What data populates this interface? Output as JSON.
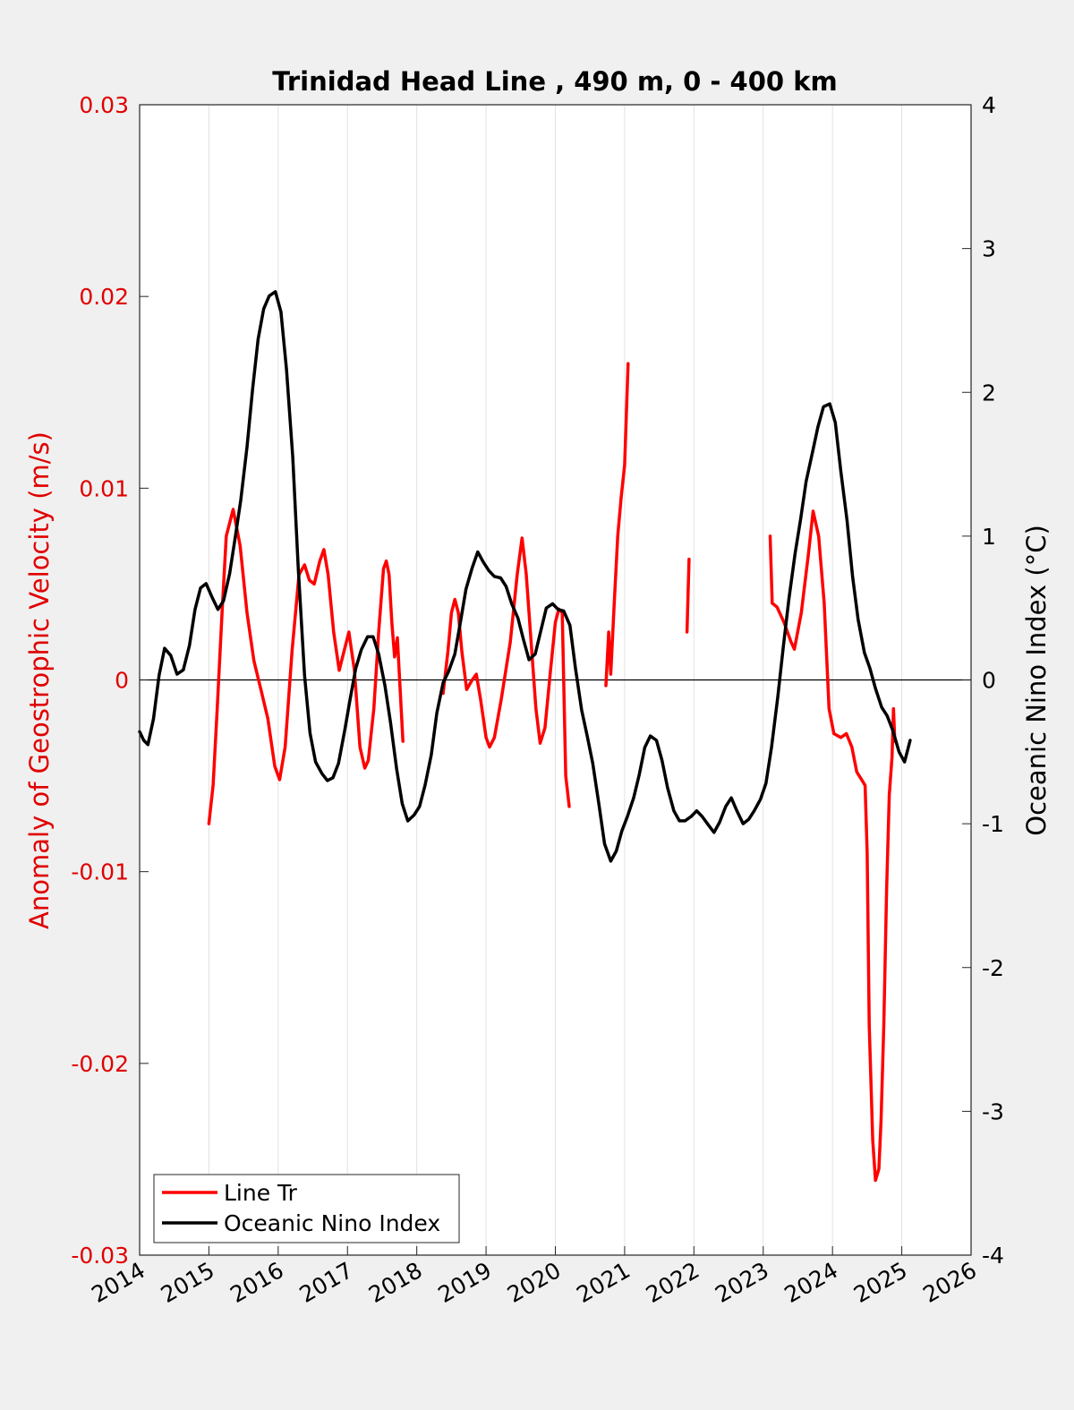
{
  "colors": {
    "line_tr": "#ff0000",
    "oni": "#000000",
    "left_axis": "#e00000",
    "background": "#f0f0f0",
    "plot_bg": "#ffffff",
    "grid": "#e2e2e2"
  },
  "chart_data": {
    "type": "line",
    "title": "Trinidad Head Line , 490 m, 0 - 400 km",
    "ylabel_left": "Anomaly of Geostrophic Velocity (m/s)",
    "ylabel_right": "Oceanic Nino Index (°C)",
    "xlim": [
      2014,
      2026
    ],
    "ylim_left": [
      -0.03,
      0.03
    ],
    "ylim_right": [
      -4,
      4
    ],
    "grid": "vertical lines at each year",
    "legend_position": "bottom-left",
    "x_ticks": [
      "2014",
      "2015",
      "2016",
      "2017",
      "2018",
      "2019",
      "2020",
      "2021",
      "2022",
      "2023",
      "2024",
      "2025",
      "2026"
    ],
    "y_ticks_left": [
      "-0.03",
      "-0.02",
      "-0.01",
      "0",
      "0.01",
      "0.02",
      "0.03"
    ],
    "y_ticks_right": [
      "-4",
      "-3",
      "-2",
      "-1",
      "0",
      "1",
      "2",
      "3",
      "4"
    ],
    "series": [
      {
        "name": "Line Tr",
        "axis": "left",
        "segments": [
          [
            [
              2015.0,
              -0.0075
            ],
            [
              2015.06,
              -0.0055
            ],
            [
              2015.12,
              -0.0015
            ],
            [
              2015.19,
              0.0035
            ],
            [
              2015.25,
              0.0075
            ],
            [
              2015.35,
              0.0089
            ],
            [
              2015.45,
              0.007
            ],
            [
              2015.55,
              0.0035
            ],
            [
              2015.65,
              0.001
            ],
            [
              2015.75,
              -0.0005
            ],
            [
              2015.85,
              -0.002
            ],
            [
              2015.95,
              -0.0045
            ],
            [
              2016.02,
              -0.0052
            ],
            [
              2016.1,
              -0.0035
            ],
            [
              2016.2,
              0.0015
            ],
            [
              2016.3,
              0.0055
            ],
            [
              2016.38,
              0.006
            ],
            [
              2016.45,
              0.0052
            ],
            [
              2016.52,
              0.005
            ],
            [
              2016.6,
              0.0062
            ],
            [
              2016.66,
              0.0068
            ],
            [
              2016.72,
              0.0055
            ],
            [
              2016.8,
              0.0025
            ],
            [
              2016.88,
              0.0005
            ],
            [
              2016.95,
              0.0015
            ],
            [
              2017.02,
              0.0025
            ],
            [
              2017.1,
              0.0005
            ],
            [
              2017.18,
              -0.0035
            ],
            [
              2017.25,
              -0.0046
            ],
            [
              2017.3,
              -0.0042
            ],
            [
              2017.38,
              -0.0015
            ],
            [
              2017.45,
              0.0025
            ],
            [
              2017.52,
              0.0058
            ],
            [
              2017.56,
              0.0062
            ],
            [
              2017.6,
              0.0055
            ],
            [
              2017.64,
              0.003
            ],
            [
              2017.68,
              0.0012
            ],
            [
              2017.72,
              0.0022
            ],
            [
              2017.76,
              -0.0005
            ],
            [
              2017.8,
              -0.0032
            ]
          ],
          [
            [
              2018.38,
              -0.0007
            ],
            [
              2018.45,
              0.0015
            ],
            [
              2018.5,
              0.0035
            ],
            [
              2018.55,
              0.0042
            ],
            [
              2018.6,
              0.0035
            ],
            [
              2018.65,
              0.0015
            ],
            [
              2018.72,
              -0.0005
            ],
            [
              2018.8,
              0.0
            ],
            [
              2018.86,
              0.0003
            ],
            [
              2018.92,
              -0.001
            ],
            [
              2019.0,
              -0.003
            ],
            [
              2019.05,
              -0.0035
            ],
            [
              2019.12,
              -0.003
            ],
            [
              2019.22,
              -0.001
            ],
            [
              2019.35,
              0.002
            ],
            [
              2019.45,
              0.0055
            ],
            [
              2019.52,
              0.0074
            ],
            [
              2019.58,
              0.0055
            ],
            [
              2019.65,
              0.002
            ],
            [
              2019.72,
              -0.0015
            ],
            [
              2019.78,
              -0.0033
            ],
            [
              2019.85,
              -0.0025
            ],
            [
              2019.93,
              0.0005
            ],
            [
              2020.0,
              0.003
            ],
            [
              2020.05,
              0.0037
            ],
            [
              2020.1,
              0.0035
            ],
            [
              2020.15,
              -0.005
            ],
            [
              2020.2,
              -0.0066
            ]
          ],
          [
            [
              2020.73,
              -0.0003
            ],
            [
              2020.77,
              0.0025
            ],
            [
              2020.8,
              0.0003
            ],
            [
              2020.85,
              0.004
            ],
            [
              2020.9,
              0.0075
            ],
            [
              2020.95,
              0.0095
            ],
            [
              2021.0,
              0.0112
            ],
            [
              2021.05,
              0.0165
            ]
          ],
          [
            [
              2021.9,
              0.0025
            ],
            [
              2021.93,
              0.0063
            ]
          ],
          [
            [
              2023.1,
              0.0075
            ],
            [
              2023.13,
              0.004
            ],
            [
              2023.2,
              0.0038
            ],
            [
              2023.3,
              0.003
            ],
            [
              2023.4,
              0.002
            ],
            [
              2023.45,
              0.0016
            ],
            [
              2023.55,
              0.0035
            ],
            [
              2023.65,
              0.0065
            ],
            [
              2023.72,
              0.0088
            ],
            [
              2023.8,
              0.0075
            ],
            [
              2023.88,
              0.004
            ],
            [
              2023.95,
              -0.0015
            ],
            [
              2024.02,
              -0.0028
            ],
            [
              2024.12,
              -0.003
            ],
            [
              2024.2,
              -0.0028
            ],
            [
              2024.28,
              -0.0035
            ],
            [
              2024.35,
              -0.0048
            ],
            [
              2024.42,
              -0.0052
            ],
            [
              2024.47,
              -0.0055
            ],
            [
              2024.5,
              -0.009
            ],
            [
              2024.53,
              -0.018
            ],
            [
              2024.58,
              -0.024
            ],
            [
              2024.62,
              -0.0261
            ],
            [
              2024.67,
              -0.0255
            ],
            [
              2024.7,
              -0.023
            ],
            [
              2024.74,
              -0.018
            ],
            [
              2024.78,
              -0.011
            ],
            [
              2024.82,
              -0.006
            ],
            [
              2024.86,
              -0.004
            ],
            [
              2024.88,
              -0.0015
            ],
            [
              2024.9,
              -0.0032
            ]
          ]
        ]
      },
      {
        "name": "Oceanic Nino Index",
        "axis": "right",
        "points": [
          [
            2014.0,
            -0.36
          ],
          [
            2014.06,
            -0.42
          ],
          [
            2014.12,
            -0.45
          ],
          [
            2014.2,
            -0.27
          ],
          [
            2014.28,
            0.03
          ],
          [
            2014.36,
            0.22
          ],
          [
            2014.45,
            0.17
          ],
          [
            2014.54,
            0.04
          ],
          [
            2014.63,
            0.07
          ],
          [
            2014.72,
            0.24
          ],
          [
            2014.8,
            0.49
          ],
          [
            2014.88,
            0.64
          ],
          [
            2014.96,
            0.67
          ],
          [
            2015.05,
            0.57
          ],
          [
            2015.13,
            0.49
          ],
          [
            2015.21,
            0.55
          ],
          [
            2015.3,
            0.74
          ],
          [
            2015.38,
            0.99
          ],
          [
            2015.46,
            1.25
          ],
          [
            2015.55,
            1.62
          ],
          [
            2015.63,
            2.02
          ],
          [
            2015.71,
            2.37
          ],
          [
            2015.79,
            2.58
          ],
          [
            2015.87,
            2.67
          ],
          [
            2015.96,
            2.7
          ],
          [
            2016.04,
            2.56
          ],
          [
            2016.12,
            2.16
          ],
          [
            2016.21,
            1.55
          ],
          [
            2016.29,
            0.77
          ],
          [
            2016.38,
            0.03
          ],
          [
            2016.46,
            -0.37
          ],
          [
            2016.54,
            -0.57
          ],
          [
            2016.63,
            -0.65
          ],
          [
            2016.71,
            -0.7
          ],
          [
            2016.79,
            -0.68
          ],
          [
            2016.87,
            -0.58
          ],
          [
            2016.96,
            -0.35
          ],
          [
            2017.04,
            -0.13
          ],
          [
            2017.12,
            0.08
          ],
          [
            2017.2,
            0.21
          ],
          [
            2017.29,
            0.3
          ],
          [
            2017.37,
            0.3
          ],
          [
            2017.45,
            0.18
          ],
          [
            2017.54,
            -0.04
          ],
          [
            2017.62,
            -0.29
          ],
          [
            2017.71,
            -0.62
          ],
          [
            2017.79,
            -0.86
          ],
          [
            2017.87,
            -0.98
          ],
          [
            2017.96,
            -0.94
          ],
          [
            2018.04,
            -0.88
          ],
          [
            2018.12,
            -0.73
          ],
          [
            2018.21,
            -0.52
          ],
          [
            2018.29,
            -0.23
          ],
          [
            2018.38,
            -0.02
          ],
          [
            2018.46,
            0.06
          ],
          [
            2018.55,
            0.18
          ],
          [
            2018.63,
            0.4
          ],
          [
            2018.71,
            0.63
          ],
          [
            2018.8,
            0.78
          ],
          [
            2018.88,
            0.89
          ],
          [
            2018.96,
            0.82
          ],
          [
            2019.04,
            0.76
          ],
          [
            2019.12,
            0.72
          ],
          [
            2019.21,
            0.71
          ],
          [
            2019.29,
            0.65
          ],
          [
            2019.37,
            0.53
          ],
          [
            2019.46,
            0.43
          ],
          [
            2019.54,
            0.28
          ],
          [
            2019.62,
            0.14
          ],
          [
            2019.71,
            0.18
          ],
          [
            2019.79,
            0.34
          ],
          [
            2019.87,
            0.5
          ],
          [
            2019.96,
            0.53
          ],
          [
            2020.04,
            0.49
          ],
          [
            2020.12,
            0.48
          ],
          [
            2020.21,
            0.38
          ],
          [
            2020.29,
            0.08
          ],
          [
            2020.38,
            -0.21
          ],
          [
            2020.46,
            -0.39
          ],
          [
            2020.54,
            -0.58
          ],
          [
            2020.63,
            -0.87
          ],
          [
            2020.71,
            -1.14
          ],
          [
            2020.8,
            -1.26
          ],
          [
            2020.88,
            -1.19
          ],
          [
            2020.96,
            -1.05
          ],
          [
            2021.04,
            -0.95
          ],
          [
            2021.13,
            -0.82
          ],
          [
            2021.21,
            -0.66
          ],
          [
            2021.29,
            -0.47
          ],
          [
            2021.37,
            -0.39
          ],
          [
            2021.46,
            -0.42
          ],
          [
            2021.54,
            -0.56
          ],
          [
            2021.62,
            -0.75
          ],
          [
            2021.71,
            -0.91
          ],
          [
            2021.79,
            -0.98
          ],
          [
            2021.87,
            -0.98
          ],
          [
            2021.96,
            -0.95
          ],
          [
            2022.04,
            -0.91
          ],
          [
            2022.12,
            -0.95
          ],
          [
            2022.21,
            -1.01
          ],
          [
            2022.29,
            -1.06
          ],
          [
            2022.37,
            -0.99
          ],
          [
            2022.46,
            -0.88
          ],
          [
            2022.54,
            -0.82
          ],
          [
            2022.62,
            -0.91
          ],
          [
            2022.71,
            -1.0
          ],
          [
            2022.79,
            -0.97
          ],
          [
            2022.87,
            -0.91
          ],
          [
            2022.96,
            -0.83
          ],
          [
            2023.04,
            -0.72
          ],
          [
            2023.12,
            -0.47
          ],
          [
            2023.21,
            -0.12
          ],
          [
            2023.29,
            0.23
          ],
          [
            2023.37,
            0.56
          ],
          [
            2023.46,
            0.88
          ],
          [
            2023.54,
            1.12
          ],
          [
            2023.62,
            1.38
          ],
          [
            2023.71,
            1.58
          ],
          [
            2023.79,
            1.76
          ],
          [
            2023.87,
            1.9
          ],
          [
            2023.96,
            1.92
          ],
          [
            2024.04,
            1.79
          ],
          [
            2024.12,
            1.45
          ],
          [
            2024.21,
            1.11
          ],
          [
            2024.29,
            0.72
          ],
          [
            2024.37,
            0.42
          ],
          [
            2024.46,
            0.19
          ],
          [
            2024.54,
            0.08
          ],
          [
            2024.62,
            -0.06
          ],
          [
            2024.71,
            -0.19
          ],
          [
            2024.79,
            -0.25
          ],
          [
            2024.87,
            -0.35
          ],
          [
            2024.96,
            -0.5
          ],
          [
            2025.04,
            -0.57
          ],
          [
            2025.12,
            -0.42
          ]
        ]
      }
    ]
  }
}
